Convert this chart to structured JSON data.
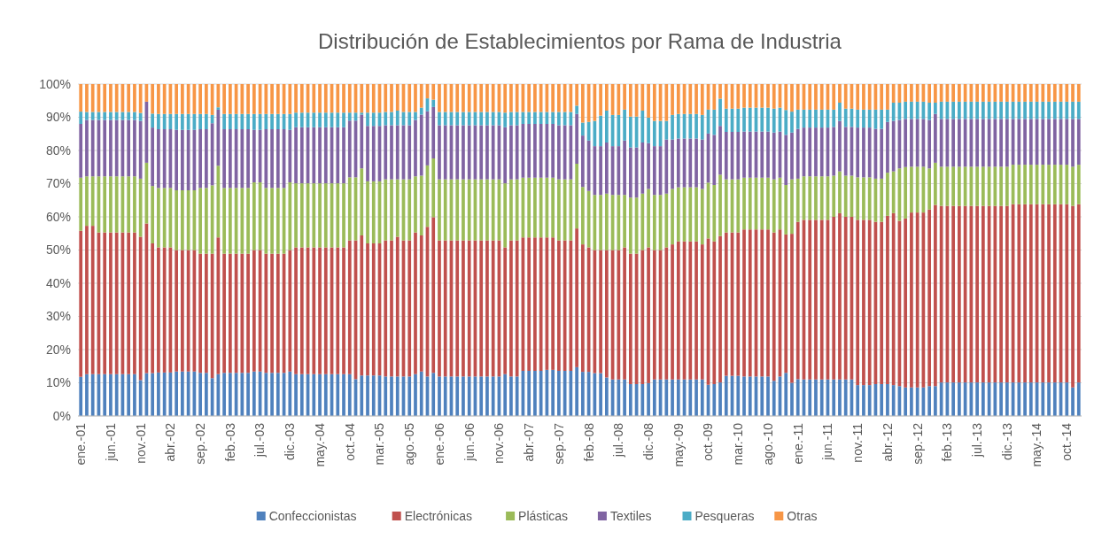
{
  "chart_data": {
    "type": "bar",
    "stacked": true,
    "title": "Distribución de Establecimientos por Rama de Industria",
    "categories": [
      "ene.-01",
      null,
      null,
      null,
      null,
      "jun.-01",
      null,
      null,
      null,
      null,
      "nov.-01",
      null,
      null,
      null,
      null,
      "abr.-02",
      null,
      null,
      null,
      null,
      "sep.-02",
      null,
      null,
      null,
      null,
      "feb.-03",
      null,
      null,
      null,
      null,
      "jul.-03",
      null,
      null,
      null,
      null,
      "dic.-03",
      null,
      null,
      null,
      null,
      "may.-04",
      null,
      null,
      null,
      null,
      "oct.-04",
      null,
      null,
      null,
      null,
      "mar.-05",
      null,
      null,
      null,
      null,
      "ago.-05",
      null,
      null,
      null,
      null,
      "ene.-06",
      null,
      null,
      null,
      null,
      "jun.-06",
      null,
      null,
      null,
      null,
      "nov.-06",
      null,
      null,
      null,
      null,
      "abr.-07",
      null,
      null,
      null,
      null,
      "sep.-07",
      null,
      null,
      null,
      null,
      "feb.-08",
      null,
      null,
      null,
      null,
      "jul.-08",
      null,
      null,
      null,
      null,
      "dic.-08",
      null,
      null,
      null,
      null,
      "may.-09",
      null,
      null,
      null,
      null,
      "oct.-09",
      null,
      null,
      null,
      null,
      "mar.-10",
      null,
      null,
      null,
      null,
      "ago.-10",
      null,
      null,
      null,
      null,
      "ene.-11",
      null,
      null,
      null,
      null,
      "jun.-11",
      null,
      null,
      null,
      null,
      "nov.-11",
      null,
      null,
      null,
      null,
      "abr.-12",
      null,
      null,
      null,
      null,
      "sep.-12",
      null,
      null,
      null,
      null,
      "feb.-13",
      null,
      null,
      null,
      null,
      "jul.-13",
      null,
      null,
      null,
      null,
      "dic.-13",
      null,
      null,
      null,
      null,
      "may.-14",
      null,
      null,
      null,
      null,
      "oct.-14",
      null,
      null
    ],
    "series": [
      {
        "name": "Confeccionistas",
        "color": "#4f81bd",
        "values": [
          11.8,
          12.6,
          12.6,
          12.6,
          12.6,
          12.6,
          12.6,
          12.6,
          12.6,
          12.6,
          10.8,
          12.9,
          12.9,
          13.1,
          13.1,
          13.1,
          13.4,
          13.4,
          13.4,
          13.4,
          13,
          13,
          11.4,
          12.6,
          13,
          13,
          13,
          13,
          13,
          13.4,
          13.4,
          13,
          13,
          13,
          13,
          13.4,
          12.6,
          12.6,
          12.6,
          12.6,
          12.6,
          12.6,
          12.6,
          12.6,
          12.6,
          12.6,
          11.1,
          12.2,
          12.2,
          12.2,
          12.2,
          11.9,
          11.9,
          11.9,
          11.9,
          11.9,
          12.6,
          13.4,
          11.9,
          13,
          11.9,
          11.9,
          11.9,
          11.9,
          11.9,
          11.9,
          11.9,
          11.9,
          11.9,
          11.9,
          11.9,
          12.6,
          11.9,
          11.9,
          13.6,
          13.6,
          13.6,
          13.6,
          13.9,
          13.9,
          13.6,
          13.6,
          13.6,
          14.7,
          13.3,
          13.3,
          12.9,
          12.9,
          11.6,
          11,
          11,
          11,
          9.6,
          9.6,
          9.6,
          9.9,
          11,
          11,
          11,
          11,
          11,
          11,
          11,
          11,
          11,
          9.4,
          9.6,
          10.1,
          12.1,
          12.1,
          12.1,
          11.9,
          11.9,
          11.9,
          11.9,
          11.9,
          10.6,
          11.9,
          13,
          10,
          11.1,
          11,
          11,
          11,
          11,
          11,
          11,
          11,
          11,
          11,
          9.3,
          9.3,
          9.3,
          9.6,
          9.6,
          9.6,
          9.3,
          9,
          8.6,
          8.6,
          8.6,
          8.6,
          9,
          9,
          10.1,
          10.1,
          10.1,
          10.1,
          10.1,
          10.1,
          10.1,
          10.1,
          10.1,
          10.1,
          10.1,
          10.1,
          10.1,
          10.1,
          10.1,
          10.1,
          10.1,
          10.1,
          10.1,
          10.1,
          10.1,
          10.1,
          8.6,
          10.1
        ]
      },
      {
        "name": "Electrónicas",
        "color": "#c0504d",
        "values": [
          44,
          44.7,
          44.7,
          42.7,
          42.7,
          42.7,
          42.7,
          42.7,
          42.7,
          42.7,
          43.2,
          45.1,
          39.1,
          37.7,
          37.7,
          37.7,
          36.6,
          36.6,
          36.6,
          36.6,
          35.9,
          35.9,
          37.5,
          41.2,
          35.9,
          35.9,
          35.9,
          35.9,
          35.9,
          36.6,
          36.6,
          35.9,
          35.9,
          35.9,
          35.9,
          36.6,
          38.2,
          38.2,
          38.2,
          38.2,
          38.2,
          38.2,
          38.2,
          38.2,
          38.2,
          40.3,
          41.8,
          42.2,
          39.8,
          39.8,
          39.8,
          41,
          41,
          42.1,
          41,
          41,
          42.7,
          41,
          45.1,
          46.9,
          41,
          41,
          41,
          41,
          41,
          41,
          41,
          41,
          41,
          41,
          41,
          38.2,
          41,
          41,
          40.2,
          40.2,
          40.2,
          40.2,
          39.9,
          39.9,
          39.3,
          39.3,
          39.3,
          41.8,
          38.4,
          37.5,
          37.1,
          37.1,
          38.4,
          39,
          39,
          39.8,
          39.3,
          39.3,
          40.4,
          40.9,
          39,
          39,
          39.8,
          40.7,
          41.6,
          41.6,
          41.6,
          41.6,
          40.7,
          44.1,
          43,
          44.1,
          43.2,
          43.2,
          43.2,
          44.3,
          44.3,
          44.3,
          44.3,
          44.3,
          44.7,
          44.3,
          41.7,
          44.9,
          47.4,
          48.1,
          48.1,
          48.1,
          48.1,
          48.1,
          49,
          50.1,
          49,
          49,
          49.8,
          49.8,
          49.8,
          48.9,
          48.9,
          50.7,
          51.8,
          49.8,
          50.9,
          52.7,
          52.7,
          52.7,
          53.2,
          54.6,
          53.2,
          53.2,
          53.2,
          53.2,
          53.2,
          53.2,
          53.2,
          53.2,
          53.2,
          53.2,
          53.2,
          53.2,
          53.7,
          53.7,
          53.7,
          53.7,
          53.7,
          53.7,
          53.7,
          53.7,
          53.7,
          53.7,
          54.7,
          53.7
        ]
      },
      {
        "name": "Plásticas",
        "color": "#9bbb59",
        "values": [
          16,
          14.9,
          14.9,
          16.9,
          16.9,
          16.9,
          16.9,
          16.9,
          16.9,
          16.9,
          17.5,
          18.3,
          17.3,
          17.9,
          17.9,
          17.9,
          18,
          18,
          18,
          18,
          19.8,
          19.8,
          20.6,
          21.6,
          19.8,
          19.8,
          19.8,
          19.8,
          19.8,
          20.4,
          20.4,
          19.8,
          19.8,
          19.8,
          19.8,
          20.4,
          19.3,
          19.3,
          19.3,
          19.3,
          19.3,
          19.3,
          19.3,
          19.3,
          19.3,
          19,
          19,
          20.2,
          18.7,
          18.7,
          18.7,
          18.4,
          18.4,
          17.3,
          18.4,
          18.4,
          16.9,
          18,
          18.5,
          17.7,
          18.4,
          18.4,
          18.4,
          18.4,
          18.4,
          18.4,
          18.4,
          18.4,
          18.4,
          18.4,
          18.4,
          19.3,
          18.4,
          18.4,
          18,
          18,
          18,
          18,
          18,
          18,
          18.4,
          18.4,
          18.4,
          19.5,
          17.3,
          17,
          16.6,
          16.6,
          17,
          16.6,
          16.6,
          15.8,
          16.9,
          16.9,
          17,
          17.6,
          16.6,
          16.6,
          16.2,
          16.7,
          16.3,
          16.3,
          16.3,
          16.3,
          16.7,
          16.8,
          17,
          18.5,
          16,
          16,
          16,
          15.6,
          15.6,
          15.6,
          15.6,
          15.6,
          16,
          15.6,
          14.9,
          16.4,
          13,
          13.1,
          13.1,
          13.1,
          13.1,
          13.1,
          12.4,
          12.6,
          12.4,
          12.4,
          12.8,
          12.8,
          12.8,
          13,
          13,
          13,
          12.6,
          15.8,
          15.5,
          13.8,
          13.8,
          13.8,
          12.4,
          12.7,
          11.8,
          11.8,
          11.8,
          11.8,
          11.8,
          11.8,
          11.8,
          11.8,
          11.8,
          11.8,
          11.8,
          11.8,
          11.9,
          11.9,
          11.9,
          11.9,
          11.9,
          11.9,
          11.9,
          11.9,
          11.9,
          11.9,
          11.8,
          11.9
        ]
      },
      {
        "name": "Textiles",
        "color": "#8064a2",
        "values": [
          16.2,
          17,
          17,
          17,
          17,
          17,
          17,
          17,
          17,
          17,
          17.4,
          18.4,
          17.6,
          17.7,
          17.7,
          17.7,
          18.2,
          18.2,
          18.2,
          18.2,
          17.7,
          17.7,
          18.7,
          16.9,
          17.7,
          17.7,
          17.7,
          17.7,
          17.7,
          15.8,
          15.8,
          17.7,
          17.7,
          17.7,
          17.7,
          15.8,
          16.9,
          16.9,
          16.9,
          16.9,
          16.9,
          16.9,
          16.9,
          16.9,
          16.9,
          17.1,
          17.1,
          16.2,
          16.7,
          16.7,
          16.7,
          16.3,
          16.3,
          16.3,
          16.3,
          16.3,
          17,
          18.4,
          16.3,
          15.5,
          16.3,
          16.3,
          16.3,
          16.3,
          16.3,
          16.3,
          16.3,
          16.3,
          16.3,
          16.3,
          16.3,
          16.9,
          16.3,
          16.3,
          16.2,
          16.2,
          16.2,
          16.2,
          16.2,
          16.2,
          16.3,
          16.3,
          16.3,
          15,
          15.5,
          15.2,
          14.7,
          14.7,
          15.4,
          14.7,
          14.7,
          16.4,
          15.1,
          15.1,
          15.4,
          13.8,
          14.7,
          14.7,
          16.3,
          14.9,
          14.7,
          14.7,
          14.7,
          14.7,
          14.9,
          14.8,
          15.1,
          14.7,
          14.3,
          14.3,
          14.3,
          13.9,
          13.9,
          13.9,
          13.9,
          13.9,
          14.1,
          13.9,
          15.1,
          14.1,
          15,
          14.7,
          14.7,
          14.7,
          14.7,
          14.7,
          14.7,
          15.2,
          14.7,
          14.7,
          15,
          15,
          15,
          15,
          15,
          15.3,
          15.2,
          14.6,
          14.5,
          14.4,
          14.4,
          14.4,
          14.6,
          14.7,
          14.4,
          14.4,
          14.4,
          14.4,
          14.4,
          14.4,
          14.4,
          14.4,
          14.4,
          14.4,
          14.4,
          14.4,
          13.8,
          13.8,
          13.8,
          13.8,
          13.8,
          13.8,
          13.8,
          13.8,
          13.8,
          13.8,
          14.4,
          13.8
        ]
      },
      {
        "name": "Pesqueras",
        "color": "#4bacc6",
        "values": [
          3.7,
          2.4,
          2.4,
          2.4,
          2.4,
          2.4,
          2.4,
          2.4,
          2.4,
          2.4,
          2.4,
          0,
          4.2,
          4.6,
          4.6,
          4.6,
          4.8,
          4.8,
          4.8,
          4.8,
          4.6,
          4.6,
          2.5,
          0.7,
          4.6,
          4.6,
          4.6,
          4.6,
          4.6,
          4.8,
          4.8,
          4.6,
          4.6,
          4.6,
          4.6,
          4.8,
          4.4,
          4.4,
          4.4,
          4.4,
          4.4,
          4.4,
          4.4,
          4.4,
          4.4,
          2.4,
          2.4,
          0.6,
          4,
          4,
          4,
          4,
          4,
          4.4,
          4,
          4,
          2.4,
          2.1,
          3.9,
          2.2,
          4,
          4,
          4,
          4,
          4,
          4,
          4,
          4,
          4,
          4,
          4,
          4.4,
          4,
          4,
          3.6,
          3.6,
          3.6,
          3.6,
          3.6,
          3.6,
          4,
          4,
          4,
          2.5,
          3.9,
          5.6,
          7.6,
          9.2,
          9.6,
          9.4,
          9.4,
          9.3,
          9.3,
          9.3,
          9.6,
          7.7,
          7.6,
          7.6,
          5.6,
          7.4,
          7.4,
          7.4,
          7.4,
          7.4,
          7.4,
          7.2,
          7.6,
          8.2,
          7,
          7,
          7,
          7.2,
          7.2,
          7.2,
          7.2,
          7.2,
          7.2,
          7.2,
          7.5,
          6.3,
          5.8,
          5.4,
          5.4,
          5.4,
          5.4,
          5.4,
          5.2,
          5.5,
          5.5,
          5.5,
          5.4,
          5.4,
          5.4,
          5.8,
          5.8,
          3.7,
          5.5,
          5.2,
          5.2,
          5.2,
          5.2,
          5.2,
          5.2,
          3.4,
          5.2,
          5.2,
          5.2,
          5.2,
          5.2,
          5.2,
          5.2,
          5.2,
          5.2,
          5.2,
          5.2,
          5.2,
          5.2,
          5.2,
          5.2,
          5.2,
          5.2,
          5.2,
          5.2,
          5.2,
          5.2,
          5.2,
          5.2,
          5.2
        ]
      },
      {
        "name": "Otras",
        "color": "#f79646",
        "values": [
          8.3,
          8.4,
          8.4,
          8.4,
          8.4,
          8.4,
          8.4,
          8.4,
          8.4,
          8.4,
          8.7,
          5.3,
          8.9,
          9,
          9,
          9,
          9,
          9,
          9,
          9,
          9,
          9,
          9.3,
          7,
          9,
          9,
          9,
          9,
          9,
          9,
          9,
          9,
          9,
          9,
          9,
          9,
          8.6,
          8.6,
          8.6,
          8.6,
          8.6,
          8.6,
          8.6,
          8.6,
          8.6,
          8.6,
          8.6,
          8.6,
          8.6,
          8.6,
          8.6,
          8.4,
          8.4,
          8,
          8.4,
          8.4,
          8.4,
          7.1,
          4.3,
          4.7,
          8.4,
          8.4,
          8.4,
          8.4,
          8.4,
          8.4,
          8.4,
          8.4,
          8.4,
          8.4,
          8.4,
          8.6,
          8.4,
          8.4,
          8.4,
          8.4,
          8.4,
          8.4,
          8.4,
          8.4,
          8.4,
          8.4,
          8.4,
          6.5,
          11.6,
          11.4,
          11.1,
          9.5,
          8,
          9.3,
          9.3,
          7.7,
          9.8,
          9.8,
          8,
          10.1,
          11.1,
          11.1,
          11.1,
          9.3,
          9,
          9,
          9,
          9,
          9.3,
          7.7,
          7.7,
          4.4,
          7.4,
          7.4,
          7.4,
          7.1,
          7.1,
          7.1,
          7.1,
          7.1,
          7.4,
          7.1,
          7.8,
          8.3,
          7.7,
          7.7,
          7.7,
          7.7,
          7.7,
          7.7,
          7.7,
          5.6,
          7.4,
          7.4,
          7.7,
          7.7,
          7.7,
          7.7,
          7.7,
          7.7,
          5.6,
          5.6,
          5.3,
          5.3,
          5.3,
          5.3,
          5.6,
          5.6,
          5.3,
          5.3,
          5.3,
          5.3,
          5.3,
          5.3,
          5.3,
          5.3,
          5.3,
          5.3,
          5.3,
          5.3,
          5.3,
          5.3,
          5.3,
          5.3,
          5.3,
          5.3,
          5.3,
          5.3,
          5.3,
          5.3,
          5.3,
          5.3
        ]
      }
    ],
    "ylim": [
      0,
      100
    ],
    "yticks": [
      {
        "value": 0,
        "label": "0%"
      },
      {
        "value": 10,
        "label": "10%"
      },
      {
        "value": 20,
        "label": "20%"
      },
      {
        "value": 30,
        "label": "30%"
      },
      {
        "value": 40,
        "label": "40%"
      },
      {
        "value": 50,
        "label": "50%"
      },
      {
        "value": 60,
        "label": "60%"
      },
      {
        "value": 70,
        "label": "70%"
      },
      {
        "value": 80,
        "label": "80%"
      },
      {
        "value": 90,
        "label": "90%"
      },
      {
        "value": 100,
        "label": "100%"
      }
    ],
    "grid": "y",
    "legend": "bottom"
  }
}
